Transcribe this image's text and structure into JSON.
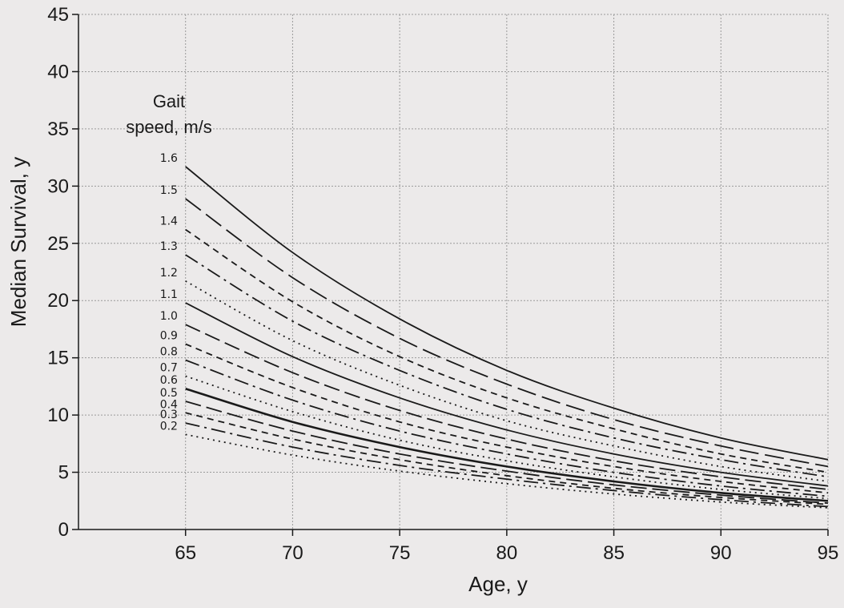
{
  "chart_data": {
    "type": "line",
    "title": "",
    "xlabel": "Age, y",
    "ylabel": "Median Survival, y",
    "xlim": [
      60,
      95
    ],
    "ylim": [
      0,
      45
    ],
    "x_ticks": [
      65,
      70,
      75,
      80,
      85,
      90,
      95
    ],
    "y_ticks": [
      0,
      5,
      10,
      15,
      20,
      25,
      30,
      35,
      40,
      45
    ],
    "grid": true,
    "legend": {
      "title_line1": "Gait",
      "title_line2": "speed, m/s",
      "placement": "left, above series labels"
    },
    "colors": {
      "background": "#eceaea",
      "line": "#1a1a1a",
      "grid": "#9a9a9a"
    },
    "x": [
      65,
      70,
      75,
      80,
      85,
      90,
      95
    ],
    "series": [
      {
        "name": "1.6",
        "values": [
          31.7,
          24.2,
          18.4,
          13.9,
          10.6,
          8.0,
          6.1
        ],
        "dash": ""
      },
      {
        "name": "1.5",
        "values": [
          28.9,
          22.0,
          16.7,
          12.7,
          9.6,
          7.3,
          5.5
        ],
        "dash": "24 8"
      },
      {
        "name": "1.4",
        "values": [
          26.2,
          19.9,
          15.1,
          11.5,
          8.8,
          6.6,
          5.0
        ],
        "dash": "8 6"
      },
      {
        "name": "1.3",
        "values": [
          24.0,
          18.2,
          13.9,
          10.5,
          8.0,
          6.1,
          4.6
        ],
        "dash": "18 6 3 6"
      },
      {
        "name": "1.2",
        "values": [
          21.7,
          16.5,
          12.6,
          9.5,
          7.3,
          5.5,
          4.2
        ],
        "dash": "2 5"
      },
      {
        "name": "1.1",
        "values": [
          19.8,
          15.1,
          11.5,
          8.7,
          6.6,
          5.0,
          3.8
        ],
        "dash": ""
      },
      {
        "name": "1.0",
        "values": [
          17.9,
          13.7,
          10.4,
          7.9,
          6.0,
          4.6,
          3.5
        ],
        "dash": "20 7"
      },
      {
        "name": "0.9",
        "values": [
          16.2,
          12.4,
          9.4,
          7.2,
          5.5,
          4.2,
          3.2
        ],
        "dash": "8 6"
      },
      {
        "name": "0.8",
        "values": [
          14.8,
          11.3,
          8.6,
          6.6,
          5.0,
          3.8,
          2.9
        ],
        "dash": "18 6 3 6"
      },
      {
        "name": "0.7",
        "values": [
          13.4,
          10.3,
          7.8,
          6.0,
          4.6,
          3.5,
          2.7
        ],
        "dash": "2 5"
      },
      {
        "name": "0.6",
        "values": [
          12.3,
          9.4,
          7.2,
          5.5,
          4.2,
          3.2,
          2.5
        ],
        "dash": ""
      },
      {
        "name": "0.5",
        "values": [
          11.2,
          8.6,
          6.6,
          5.1,
          3.9,
          3.0,
          2.3
        ],
        "dash": "20 7"
      },
      {
        "name": "0.4",
        "values": [
          10.2,
          7.9,
          6.1,
          4.7,
          3.6,
          2.8,
          2.2
        ],
        "dash": "8 6"
      },
      {
        "name": "0.3",
        "values": [
          9.3,
          7.2,
          5.6,
          4.4,
          3.4,
          2.6,
          2.0
        ],
        "dash": "18 6 3 6"
      },
      {
        "name": "0.2",
        "values": [
          8.3,
          6.5,
          5.1,
          4.0,
          3.1,
          2.4,
          1.9
        ],
        "dash": "2 5"
      }
    ]
  }
}
